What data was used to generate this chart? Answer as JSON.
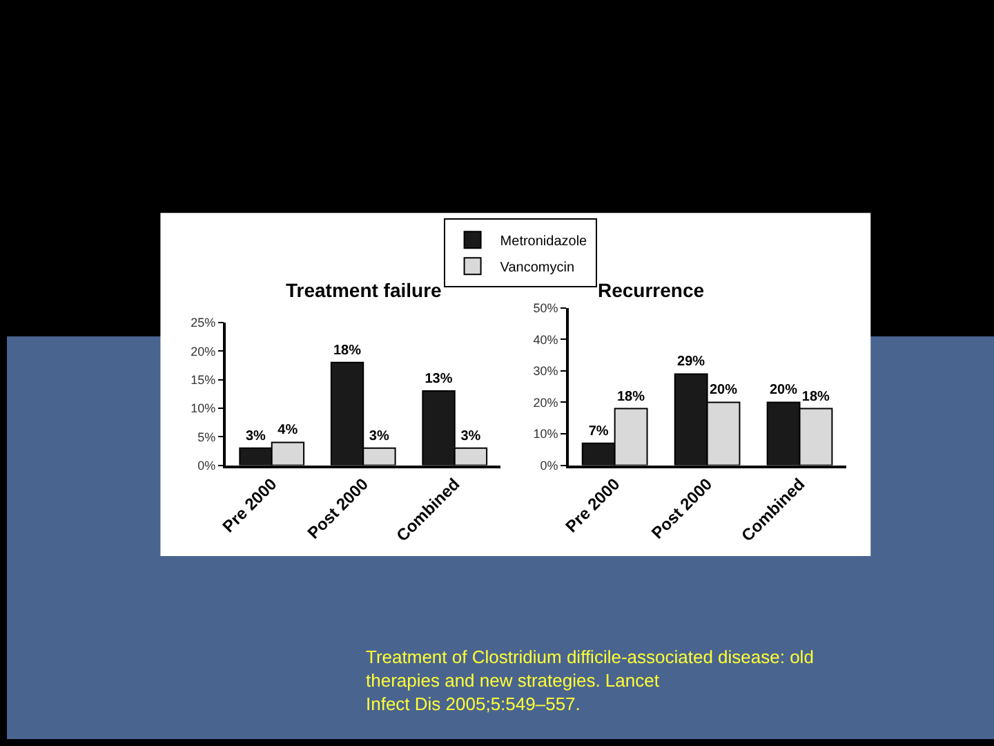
{
  "chart_data": [
    {
      "type": "bar",
      "title": "Treatment failure",
      "categories": [
        "Pre 2000",
        "Post 2000",
        "Combined"
      ],
      "series": [
        {
          "name": "Metronidazole",
          "color": "#1a1a1a",
          "values": [
            3,
            18,
            13
          ],
          "value_labels": [
            "3%",
            "18%",
            "13%"
          ]
        },
        {
          "name": "Vancomycin",
          "color": "#d9d9d9",
          "values": [
            4,
            3,
            3
          ],
          "value_labels": [
            "4%",
            "3%",
            "3%"
          ]
        }
      ],
      "ylim": [
        0,
        25
      ],
      "yticks": [
        {
          "value": 0,
          "label": "0%"
        },
        {
          "value": 5,
          "label": "5%"
        },
        {
          "value": 10,
          "label": "10%"
        },
        {
          "value": 15,
          "label": "15%"
        },
        {
          "value": 20,
          "label": "20%"
        },
        {
          "value": 25,
          "label": "25%"
        }
      ],
      "legend": "top",
      "grid": false,
      "annotations": [
        "Treatment of Clostridium difficile-associated disease: old\ntherapies and new strategies. Lancet\nInfect Dis 2005;5:549–557."
      ]
    },
    {
      "type": "bar",
      "title": "Recurrence",
      "categories": [
        "Pre 2000",
        "Post 2000",
        "Combined"
      ],
      "series": [
        {
          "color": "#1a1a1a",
          "values": [
            7,
            29,
            20
          ],
          "value_labels": [
            "7%",
            "29%",
            "20%"
          ]
        },
        {
          "color": "#d9d9d9",
          "values": [
            18,
            20,
            18
          ],
          "value_labels": [
            "18%",
            "20%",
            "18%"
          ]
        }
      ],
      "ylim": [
        0,
        50
      ],
      "yticks": [
        {
          "value": 0,
          "label": "0%"
        },
        {
          "value": 10,
          "label": "10%"
        },
        {
          "value": 20,
          "label": "20%"
        },
        {
          "value": 30,
          "label": "30%"
        },
        {
          "value": 40,
          "label": "40%"
        },
        {
          "value": 50,
          "label": "50%"
        }
      ],
      "grid": false
    }
  ]
}
